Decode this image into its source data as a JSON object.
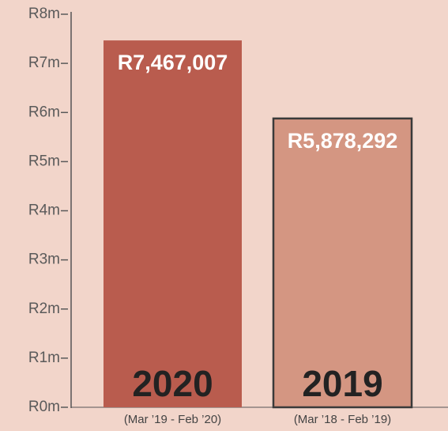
{
  "chart_data": {
    "type": "bar",
    "categories": [
      "2020",
      "2019"
    ],
    "periods": [
      "(Mar ’19 - Feb ’20)",
      "(Mar ’18 - Feb ’19)"
    ],
    "values": [
      7467007,
      5878292
    ],
    "value_labels": [
      "R7,467,007",
      "R5,878,292"
    ],
    "colors": [
      "#b95c4e",
      "#d49682"
    ],
    "ylim": [
      0,
      8000000
    ],
    "yticks": [
      {
        "value": 0,
        "label": "R0m"
      },
      {
        "value": 1000000,
        "label": "R1m"
      },
      {
        "value": 2000000,
        "label": "R2m"
      },
      {
        "value": 3000000,
        "label": "R3m"
      },
      {
        "value": 4000000,
        "label": "R4m"
      },
      {
        "value": 5000000,
        "label": "R5m"
      },
      {
        "value": 6000000,
        "label": "R6m"
      },
      {
        "value": 7000000,
        "label": "R7m"
      },
      {
        "value": 8000000,
        "label": "R8m"
      }
    ]
  }
}
